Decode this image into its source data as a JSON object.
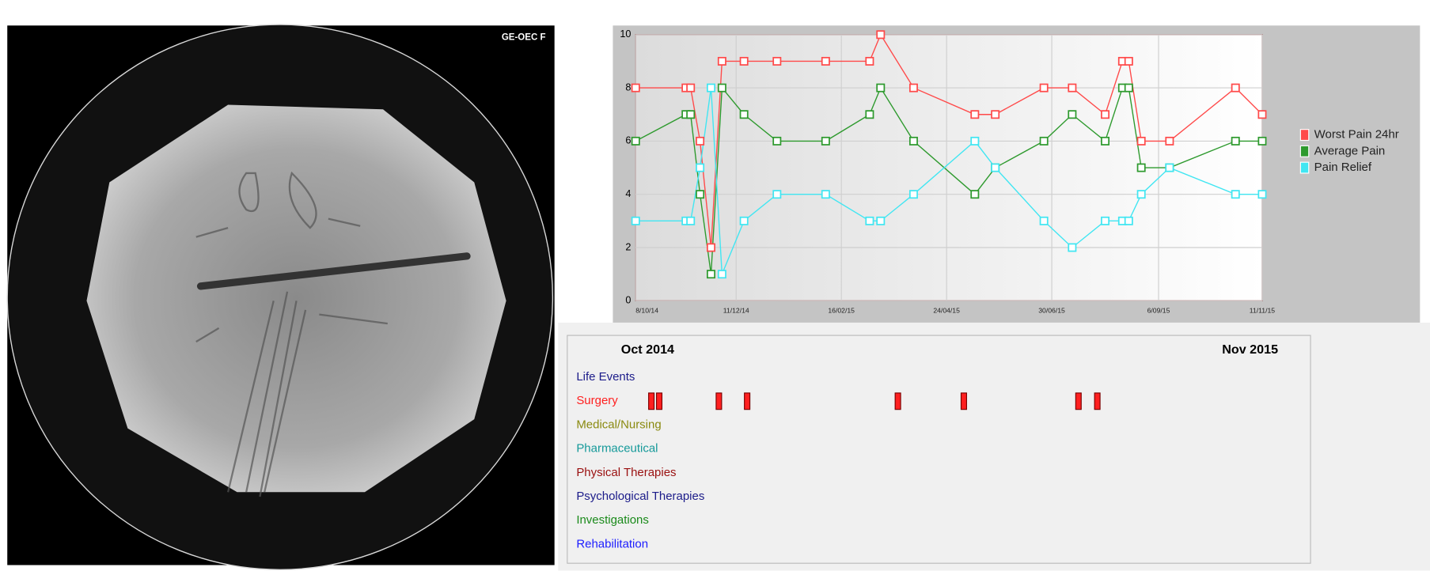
{
  "xray": {
    "label": "GE-OEC F"
  },
  "chart_data": {
    "type": "line",
    "x": [
      "2014-10-08",
      "2014-11-09",
      "2014-11-12",
      "2014-11-18",
      "2014-11-25",
      "2014-12-02",
      "2014-12-16",
      "2015-01-06",
      "2015-02-06",
      "2015-03-06",
      "2015-03-13",
      "2015-04-03",
      "2015-05-12",
      "2015-05-25",
      "2015-06-25",
      "2015-07-13",
      "2015-08-03",
      "2015-08-14",
      "2015-08-18",
      "2015-08-26",
      "2015-09-13",
      "2015-10-25",
      "2015-11-11"
    ],
    "xlim": [
      "2014-10-08",
      "2015-11-11"
    ],
    "xticks": [
      {
        "value": "2014-10-08",
        "label": "8/10/14"
      },
      {
        "value": "2014-12-11",
        "label": "11/12/14"
      },
      {
        "value": "2015-02-16",
        "label": "16/02/15"
      },
      {
        "value": "2015-04-24",
        "label": "24/04/15"
      },
      {
        "value": "2015-06-30",
        "label": "30/06/15"
      },
      {
        "value": "2015-09-06",
        "label": "6/09/15"
      },
      {
        "value": "2015-11-11",
        "label": "11/11/15"
      }
    ],
    "ylim": [
      0,
      10
    ],
    "yticks": [
      0,
      2,
      4,
      6,
      8,
      10
    ],
    "grid": true,
    "legend": "right",
    "series": [
      {
        "name": "Worst Pain 24hr",
        "color": "#ff4a4a",
        "values": [
          8,
          8,
          8,
          6,
          2,
          9,
          9,
          9,
          9,
          9,
          10,
          8,
          7,
          7,
          8,
          8,
          7,
          9,
          9,
          6,
          6,
          8,
          7
        ]
      },
      {
        "name": "Average Pain",
        "color": "#2e9a2e",
        "values": [
          6,
          7,
          7,
          4,
          1,
          8,
          7,
          6,
          6,
          7,
          8,
          6,
          4,
          5,
          6,
          7,
          6,
          8,
          8,
          5,
          5,
          6,
          6
        ]
      },
      {
        "name": "Pain Relief",
        "color": "#40e6f2",
        "values": [
          3,
          3,
          3,
          5,
          8,
          1,
          3,
          4,
          4,
          3,
          3,
          4,
          6,
          5,
          3,
          2,
          3,
          3,
          3,
          4,
          5,
          4,
          4
        ]
      }
    ]
  },
  "timeline": {
    "start_label": "Oct 2014",
    "end_label": "Nov 2015",
    "rows": [
      {
        "label": "Life Events",
        "color": "#1c1c8a",
        "events": []
      },
      {
        "label": "Surgery",
        "color": "#ff2020",
        "events": [
          "2014-10-18",
          "2014-10-23",
          "2014-11-30",
          "2014-12-18",
          "2015-03-24",
          "2015-05-05",
          "2015-07-17",
          "2015-07-29"
        ]
      },
      {
        "label": "Medical/Nursing",
        "color": "#8a8a10",
        "events": []
      },
      {
        "label": "Pharmaceutical",
        "color": "#169a9a",
        "events": []
      },
      {
        "label": "Physical Therapies",
        "color": "#9a1010",
        "events": []
      },
      {
        "label": "Psychological Therapies",
        "color": "#1c1c8a",
        "events": []
      },
      {
        "label": "Investigations",
        "color": "#1a8a1a",
        "events": []
      },
      {
        "label": "Rehabilitation",
        "color": "#1c1cff",
        "events": []
      }
    ]
  }
}
